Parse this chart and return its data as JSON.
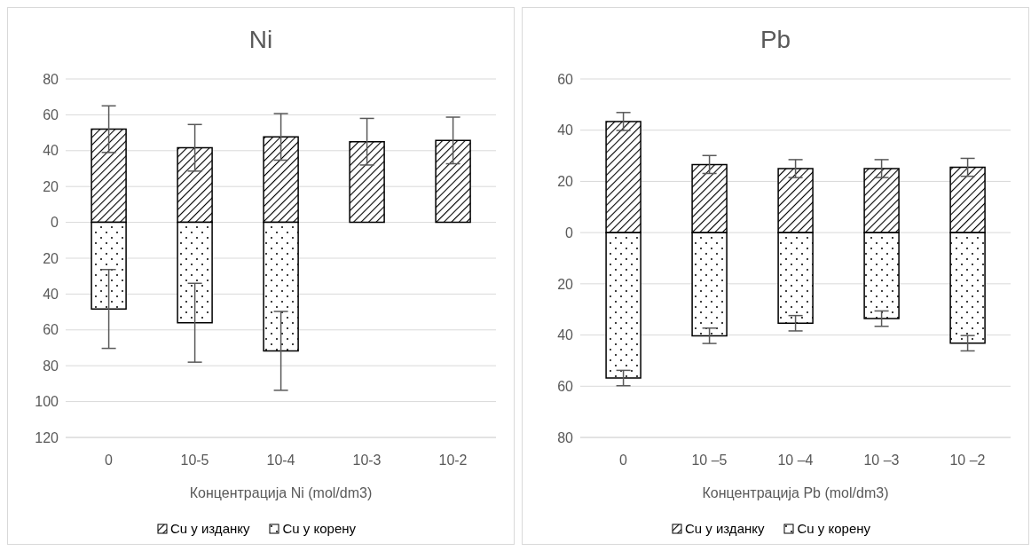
{
  "chart_data": [
    {
      "type": "bar",
      "title": "Ni",
      "xlabel": "Концентрација Ni (mol/dm3)",
      "categories": [
        "0",
        "10-5",
        "10-4",
        "10-3",
        "10-2"
      ],
      "stacked": true,
      "grid": "y",
      "legend": "bottom",
      "ylim": [
        -120,
        80
      ],
      "yticks": [
        80,
        60,
        40,
        20,
        0,
        {
          "value": -20,
          "label": "20"
        },
        {
          "value": -40,
          "label": "40"
        },
        {
          "value": -60,
          "label": "60"
        },
        {
          "value": -80,
          "label": "80"
        },
        {
          "value": -100,
          "label": "100"
        },
        {
          "value": -120,
          "label": "120"
        }
      ],
      "series": [
        {
          "name": "Cu у изданку",
          "color": "#000000",
          "values": [
            52,
            41.6,
            47.7,
            45,
            45.7
          ],
          "errors": [
            13,
            13,
            13,
            13,
            13
          ]
        },
        {
          "name": "Cu у корену",
          "color": "#000000",
          "values": [
            -48.3,
            -56,
            -71.7,
            null,
            null
          ],
          "errors": [
            22,
            22,
            22,
            null,
            null
          ]
        }
      ]
    },
    {
      "type": "bar",
      "title": "Pb",
      "xlabel": "Концентрација Pb (mol/dm3)",
      "categories": [
        "0",
        "10 –5",
        "10 –4",
        "10 –3",
        "10 –2"
      ],
      "stacked": true,
      "grid": "y",
      "legend": "bottom",
      "ylim": [
        -80,
        60
      ],
      "yticks": [
        60,
        40,
        20,
        0,
        {
          "value": -20,
          "label": "20"
        },
        {
          "value": -40,
          "label": "40"
        },
        {
          "value": -60,
          "label": "60"
        },
        {
          "value": -80,
          "label": "80"
        }
      ],
      "series": [
        {
          "name": "Cu у изданку",
          "color": "#000000",
          "values": [
            43.4,
            26.6,
            25,
            25,
            25.5
          ],
          "errors": [
            3.5,
            3.5,
            3.5,
            3.5,
            3.5
          ]
        },
        {
          "name": "Cu у корену",
          "color": "#000000",
          "values": [
            -56.8,
            -40.3,
            -35.4,
            -33.6,
            -43.2
          ],
          "errors": [
            3,
            3,
            3,
            3,
            3
          ]
        }
      ]
    }
  ]
}
